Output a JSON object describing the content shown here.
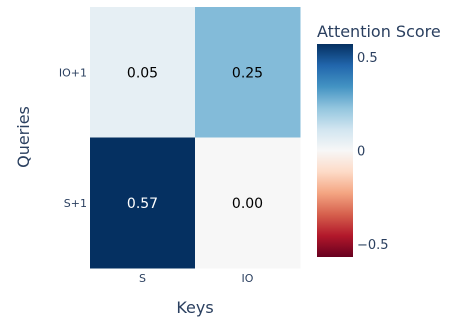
{
  "chart_data": {
    "type": "heatmap",
    "x_categories": [
      "S",
      "IO"
    ],
    "y_categories": [
      "IO+1",
      "S+1"
    ],
    "values": [
      [
        0.05,
        0.25
      ],
      [
        0.57,
        0.0
      ]
    ],
    "value_labels": [
      [
        "0.05",
        "0.25"
      ],
      [
        "0.57",
        "0.00"
      ]
    ],
    "xlabel": "Keys",
    "ylabel": "Queries",
    "zmin": -0.57,
    "zmax": 0.57,
    "colorscale": "RdBu",
    "colorbar": {
      "title": "Attention Score",
      "ticks": [
        {
          "value": 0.5,
          "label": "0.5"
        },
        {
          "value": 0,
          "label": "0"
        },
        {
          "value": -0.5,
          "label": "−0.5"
        }
      ]
    }
  }
}
